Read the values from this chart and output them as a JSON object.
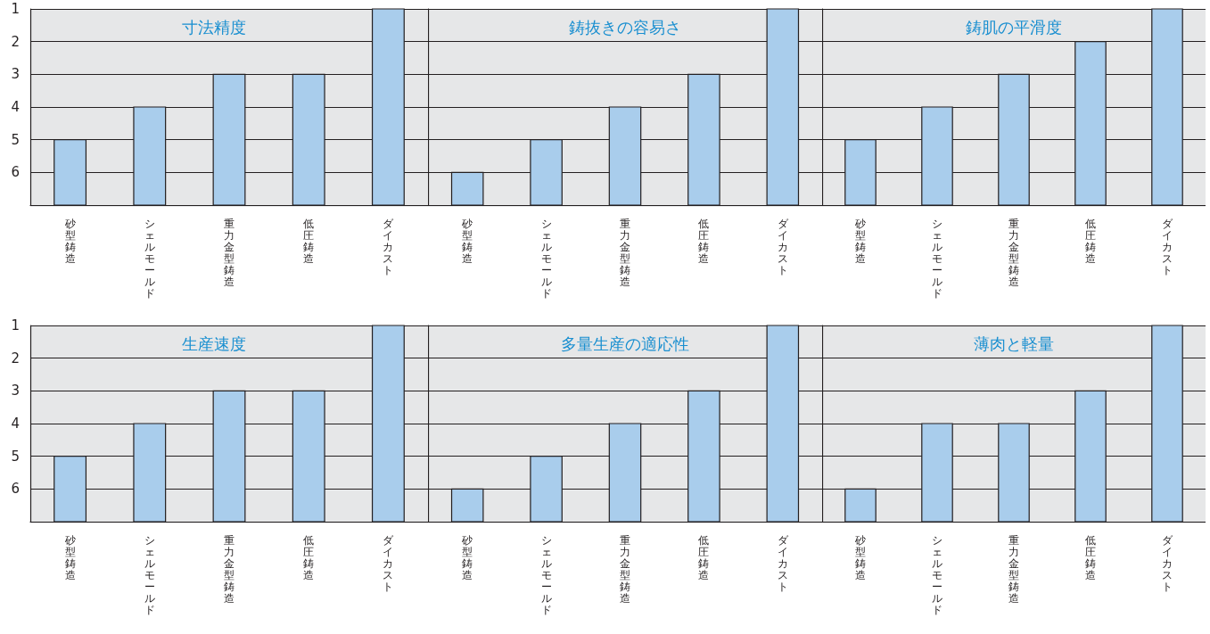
{
  "chart_data": [
    {
      "type": "bar",
      "title": "寸法精度",
      "categories": [
        "砂型鋳造",
        "シェルモールド",
        "重力金型鋳造",
        "低圧鋳造",
        "ダイカスト"
      ],
      "base": [
        5,
        4,
        3,
        3,
        1
      ],
      "values": [
        2,
        3,
        4,
        4,
        6
      ],
      "color": "#a9cdec",
      "ylim": [
        7,
        1
      ],
      "yticks": [
        1,
        2,
        3,
        4,
        5,
        6
      ],
      "grid": "y"
    },
    {
      "type": "bar",
      "title": "鋳抜きの容易さ",
      "categories": [
        "砂型鋳造",
        "シェルモールド",
        "重力金型鋳造",
        "低圧鋳造",
        "ダイカスト"
      ],
      "base": [
        6,
        5,
        4,
        3,
        1
      ],
      "values": [
        1,
        2,
        3,
        4,
        6
      ],
      "color": "#a9cdec",
      "ylim": [
        7,
        1
      ],
      "yticks": [
        1,
        2,
        3,
        4,
        5,
        6
      ],
      "grid": "y",
      "tick_labels": "x"
    },
    {
      "type": "bar",
      "title": "鋳肌の平滑度",
      "categories": [
        "砂型鋳造",
        "シェルモールド",
        "重力金型鋳造",
        "低圧鋳造",
        "ダイカスト"
      ],
      "base": [
        5,
        4,
        3,
        2,
        1
      ],
      "values": [
        2,
        3,
        4,
        5,
        6
      ],
      "color": "#a9cdec",
      "ylim": [
        7,
        1
      ],
      "yticks": [
        1,
        2,
        3,
        4,
        5,
        6
      ],
      "grid": "y",
      "tick_labels": "x"
    },
    {
      "type": "bar",
      "title": "生産速度",
      "categories": [
        "砂型鋳造",
        "シェルモールド",
        "重力金型鋳造",
        "低圧鋳造",
        "ダイカスト"
      ],
      "base": [
        5,
        4,
        3,
        3,
        1
      ],
      "values": [
        2,
        3,
        4,
        4,
        6
      ],
      "color": "#a9cdec",
      "ylim": [
        7,
        1
      ],
      "yticks": [
        1,
        2,
        3,
        4,
        5,
        6
      ],
      "grid": "y"
    },
    {
      "type": "bar",
      "title": "多量生産の適応性",
      "categories": [
        "砂型鋳造",
        "シェルモールド",
        "重力金型鋳造",
        "低圧鋳造",
        "ダイカスト"
      ],
      "base": [
        6,
        5,
        4,
        3,
        1
      ],
      "values": [
        1,
        2,
        3,
        4,
        6
      ],
      "color": "#a9cdec",
      "ylim": [
        7,
        1
      ],
      "yticks": [
        1,
        2,
        3,
        4,
        5,
        6
      ],
      "grid": "y",
      "tick_labels": "x"
    },
    {
      "type": "bar",
      "title": "薄肉と軽量",
      "categories": [
        "砂型鋳造",
        "シェルモールド",
        "重力金型鋳造",
        "低圧鋳造",
        "ダイカスト"
      ],
      "base": [
        6,
        4,
        4,
        3,
        1
      ],
      "values": [
        1,
        3,
        3,
        4,
        6
      ],
      "color": "#a9cdec",
      "ylim": [
        7,
        1
      ],
      "yticks": [
        1,
        2,
        3,
        4,
        5,
        6
      ],
      "grid": "y",
      "tick_labels": "x"
    }
  ]
}
